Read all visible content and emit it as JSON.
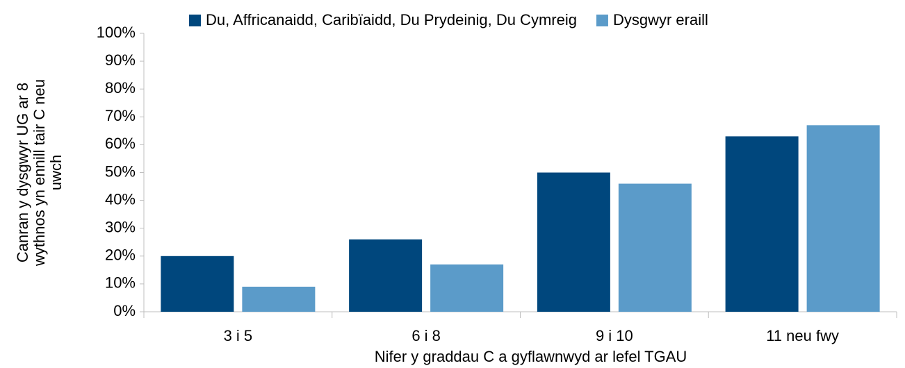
{
  "chart_data": {
    "type": "bar",
    "categories": [
      "3 i 5",
      "6 i 8",
      "9 i 10",
      "11 neu fwy"
    ],
    "series": [
      {
        "name": "Du, Affricanaidd, Caribïaidd, Du Prydeinig, Du Cymreig",
        "color": "#00477d",
        "values": [
          20,
          26,
          50,
          63
        ]
      },
      {
        "name": "Dysgwyr eraill",
        "color": "#5b9bc9",
        "values": [
          9,
          17,
          46,
          67
        ]
      }
    ],
    "xlabel": "Nifer y graddau C a gyflawnwyd  ar lefel TGAU",
    "ylabel": [
      "Canran y dysgwyr  UG ar 8",
      "wythnos  yn ennill  tair C neu",
      "uwch"
    ],
    "ylim": [
      0,
      100
    ],
    "yticks": [
      {
        "value": 0,
        "label": "0%"
      },
      {
        "value": 10,
        "label": "10%"
      },
      {
        "value": 20,
        "label": "20%"
      },
      {
        "value": 30,
        "label": "30%"
      },
      {
        "value": 40,
        "label": "40%"
      },
      {
        "value": 50,
        "label": "50%"
      },
      {
        "value": 60,
        "label": "60%"
      },
      {
        "value": 70,
        "label": "70%"
      },
      {
        "value": 80,
        "label": "80%"
      },
      {
        "value": 90,
        "label": "90%"
      },
      {
        "value": 100,
        "label": "100%"
      }
    ],
    "grid": false,
    "legend": "top"
  }
}
